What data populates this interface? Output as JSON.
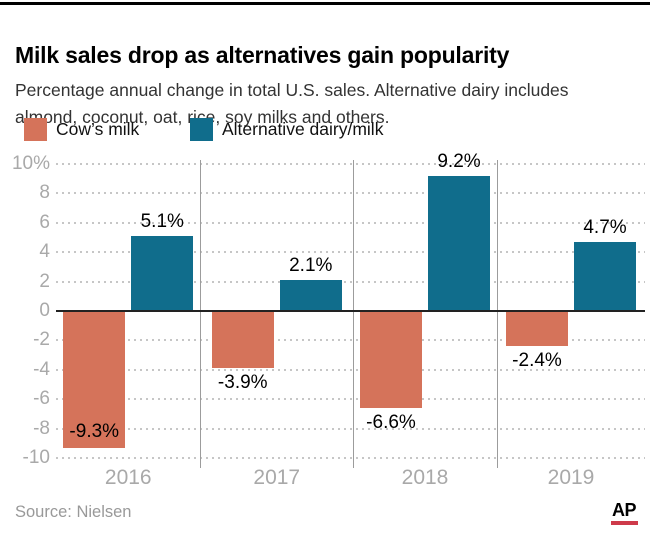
{
  "header": {
    "title": "Milk sales drop as alternatives gain popularity",
    "subtitle_line1": "Percentage annual change in total U.S. sales. Alternative dairy includes",
    "subtitle_line2": "almond, coconut, oat, rice, soy milks and others."
  },
  "legend": {
    "items": [
      {
        "label": "Cow’s milk",
        "color": "#d5735a"
      },
      {
        "label": "Alternative dairy/milk",
        "color": "#106d8c"
      }
    ]
  },
  "chart_data": {
    "type": "bar",
    "categories": [
      "2016",
      "2017",
      "2018",
      "2019"
    ],
    "series": [
      {
        "name": "Cow’s milk",
        "color": "#d5735a",
        "values": [
          -9.3,
          -3.9,
          -6.6,
          -2.4
        ],
        "data_labels": [
          "-9.3%",
          "-3.9%",
          "-6.6%",
          "-2.4%"
        ],
        "label_positions": [
          "inside-bottom",
          "below",
          "below",
          "below"
        ]
      },
      {
        "name": "Alternative dairy/milk",
        "color": "#106d8c",
        "values": [
          5.1,
          2.1,
          9.2,
          4.7
        ],
        "data_labels": [
          "5.1%",
          "2.1%",
          "9.2%",
          "4.7%"
        ],
        "label_positions": [
          "above",
          "above",
          "above",
          "above"
        ]
      }
    ],
    "y_axis": {
      "min": -10,
      "max": 10,
      "ticks": [
        {
          "label": "10%",
          "value": 10
        },
        {
          "label": "8",
          "value": 8
        },
        {
          "label": "6",
          "value": 6
        },
        {
          "label": "4",
          "value": 4
        },
        {
          "label": "2",
          "value": 2
        },
        {
          "label": "0",
          "value": 0
        },
        {
          "label": "-2",
          "value": -2
        },
        {
          "label": "-4",
          "value": -4
        },
        {
          "label": "-6",
          "value": -6
        },
        {
          "label": "-8",
          "value": -8
        },
        {
          "label": "-10",
          "value": -10
        }
      ]
    },
    "grid": {
      "horizontal": "dotted",
      "zero_line": true,
      "vertical_group_separators": true
    },
    "legend_position": "top",
    "grid_color": "#c6c6c6",
    "title": "Milk sales drop as alternatives gain popularity"
  },
  "footer": {
    "source": "Source: Nielsen",
    "logo_text": "AP",
    "logo_underline_color": "#ce3a4a"
  }
}
